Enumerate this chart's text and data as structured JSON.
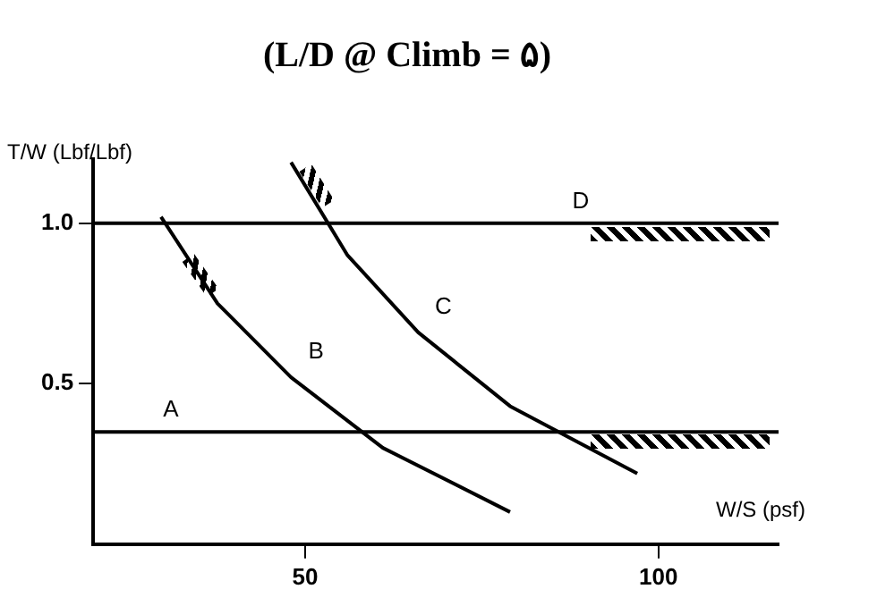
{
  "chart_data": {
    "type": "line",
    "title": "(L/D @ Climb = ۵)",
    "xlabel": "W/S (psf)",
    "ylabel": "T/W (Lbf/Lbf)",
    "xlim": [
      20,
      117
    ],
    "ylim": [
      0,
      1.2
    ],
    "xticks": [
      50,
      100
    ],
    "yticks": [
      0.5,
      {
        "value": 1,
        "label": "1.0"
      }
    ],
    "grid": false,
    "legend": false,
    "marker": "none",
    "line_style": "solid",
    "series": [
      {
        "name": "A",
        "color": "#000000",
        "x": [
          20,
          31,
          117
        ],
        "values": [
          0.35,
          0.35,
          0.35
        ]
      },
      {
        "name": "B",
        "color": "#000000",
        "x": [
          29.6,
          37.6,
          48,
          61,
          79
        ],
        "values": [
          1.02,
          0.75,
          0.52,
          0.3,
          0.1
        ]
      },
      {
        "name": "C",
        "color": "#000000",
        "x": [
          48,
          56,
          66,
          79,
          97
        ],
        "values": [
          1.19,
          0.9,
          0.66,
          0.43,
          0.22
        ]
      },
      {
        "name": "D",
        "color": "#000000",
        "x": [
          20,
          89,
          117
        ],
        "values": [
          1,
          1,
          1
        ]
      }
    ]
  }
}
